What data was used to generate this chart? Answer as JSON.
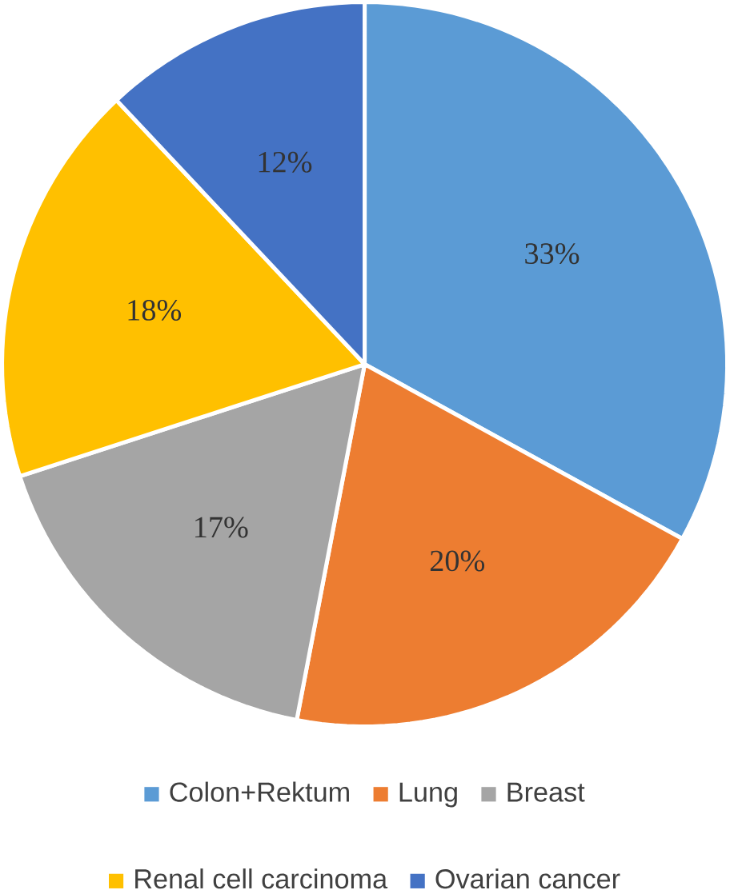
{
  "chart_data": {
    "type": "pie",
    "categories": [
      "Colon+Rektum",
      "Lung",
      "Breast",
      "Renal cell carcinoma",
      "Ovarian cancer"
    ],
    "values": [
      33,
      20,
      17,
      18,
      12
    ],
    "value_labels": [
      "33%",
      "20%",
      "17%",
      "18%",
      "12%"
    ],
    "colors": [
      "#5b9bd5",
      "#ed7d31",
      "#a5a5a5",
      "#ffc000",
      "#4472c4"
    ],
    "legend": "bottom"
  }
}
